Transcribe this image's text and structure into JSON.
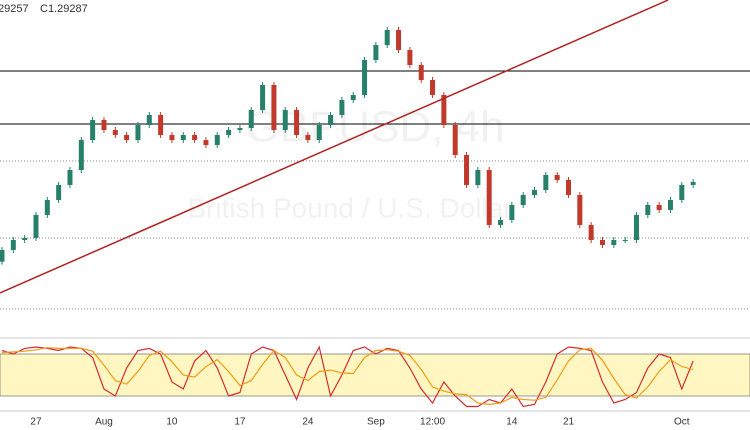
{
  "chart_data": {
    "type": "candlestick",
    "header": [
      "29257",
      "C1.29287"
    ],
    "watermark": [
      "GBPUSD, 4h",
      "British Pound / U.S. Dollar"
    ],
    "categories": [
      null,
      null,
      null,
      "27",
      null,
      null,
      null,
      null,
      null,
      "Aug",
      null,
      null,
      null,
      null,
      null,
      "10",
      null,
      null,
      null,
      null,
      null,
      "17",
      null,
      null,
      null,
      null,
      null,
      "24",
      null,
      null,
      null,
      null,
      null,
      "Sep",
      null,
      null,
      null,
      null,
      "12:00",
      null,
      null,
      null,
      null,
      null,
      null,
      "14",
      null,
      null,
      null,
      null,
      "21",
      null,
      null,
      null,
      null,
      null,
      null,
      null,
      null,
      null,
      "Oct",
      null
    ],
    "open": [
      1.266,
      1.26995,
      1.2733,
      1.274,
      1.28174,
      1.2868,
      1.29185,
      1.2969,
      1.307,
      1.31376,
      1.31039,
      1.3087,
      1.307,
      1.31207,
      1.31544,
      1.3087,
      1.307,
      1.3087,
      1.307,
      1.30533,
      1.3087,
      1.31039,
      1.31106,
      1.31713,
      1.32555,
      1.31039,
      1.31713,
      1.3087,
      1.307,
      1.31207,
      1.31544,
      1.3205,
      1.32218,
      1.33398,
      1.33903,
      1.34409,
      1.33735,
      1.33229,
      1.32724,
      1.32218,
      1.31207,
      1.30196,
      1.29185,
      1.2969,
      1.27837,
      1.28006,
      1.28511,
      1.28848,
      1.29017,
      1.29522,
      1.29354,
      1.28848,
      1.27837,
      1.2733,
      1.27163,
      1.2733,
      1.2733,
      1.28174,
      1.28511,
      1.28343,
      1.2868,
      1.29185
    ],
    "close": [
      1.26995,
      1.2733,
      1.274,
      1.28174,
      1.2868,
      1.29185,
      1.2969,
      1.307,
      1.31376,
      1.31039,
      1.3087,
      1.307,
      1.31207,
      1.31544,
      1.3087,
      1.307,
      1.3087,
      1.307,
      1.30533,
      1.3087,
      1.31039,
      1.31106,
      1.31713,
      1.32555,
      1.31039,
      1.31713,
      1.3087,
      1.307,
      1.31207,
      1.31544,
      1.3205,
      1.32218,
      1.33398,
      1.33903,
      1.34409,
      1.33735,
      1.33229,
      1.32724,
      1.32218,
      1.31207,
      1.30196,
      1.29185,
      1.2969,
      1.27837,
      1.28006,
      1.28511,
      1.28848,
      1.29017,
      1.29522,
      1.29354,
      1.28848,
      1.27837,
      1.2733,
      1.27163,
      1.2733,
      1.2733,
      1.28174,
      1.28511,
      1.28343,
      1.2868,
      1.29185,
      1.29287
    ],
    "up_color": "#26806a",
    "down_color": "#c0392b",
    "ylim": [
      1.2396,
      1.3542
    ],
    "hlines": [
      {
        "value": 1.33028,
        "style": "solid"
      },
      {
        "value": 1.31242,
        "style": "solid"
      },
      {
        "value": 1.29995,
        "style": "dotted"
      },
      {
        "value": 1.274,
        "style": "dotted"
      },
      {
        "value": 1.25007,
        "style": "dotted"
      }
    ],
    "trendline": {
      "color": "#b22222",
      "points": [
        [
          -0.18,
          1.25546
        ],
        [
          58.8,
          1.3542
        ]
      ]
    },
    "oscillator": {
      "ylim": [
        0,
        100
      ],
      "levels": [
        20,
        80
      ],
      "band_color": "#fff6c2",
      "series": [
        {
          "color": "#d32f2f",
          "values": [
            85,
            80,
            88,
            90,
            88,
            85,
            90,
            88,
            75,
            30,
            20,
            60,
            85,
            88,
            80,
            40,
            30,
            70,
            85,
            60,
            20,
            25,
            80,
            90,
            85,
            50,
            15,
            60,
            90,
            20,
            50,
            85,
            90,
            80,
            88,
            85,
            60,
            30,
            10,
            40,
            20,
            5,
            5,
            15,
            10,
            30,
            5,
            8,
            40,
            80,
            90,
            88,
            85,
            40,
            10,
            15,
            25,
            60,
            80,
            75,
            30,
            70
          ]
        },
        {
          "color": "#f39c12",
          "values": [
            82,
            83,
            84,
            86,
            89,
            88,
            88,
            88,
            84,
            64,
            42,
            37,
            55,
            78,
            84,
            69,
            50,
            47,
            62,
            72,
            55,
            35,
            42,
            65,
            85,
            75,
            50,
            42,
            55,
            57,
            53,
            52,
            75,
            85,
            86,
            84,
            78,
            58,
            33,
            27,
            23,
            22,
            10,
            8,
            10,
            18,
            15,
            14,
            18,
            43,
            70,
            86,
            88,
            71,
            45,
            22,
            17,
            33,
            55,
            72,
            62,
            58
          ]
        }
      ]
    }
  }
}
